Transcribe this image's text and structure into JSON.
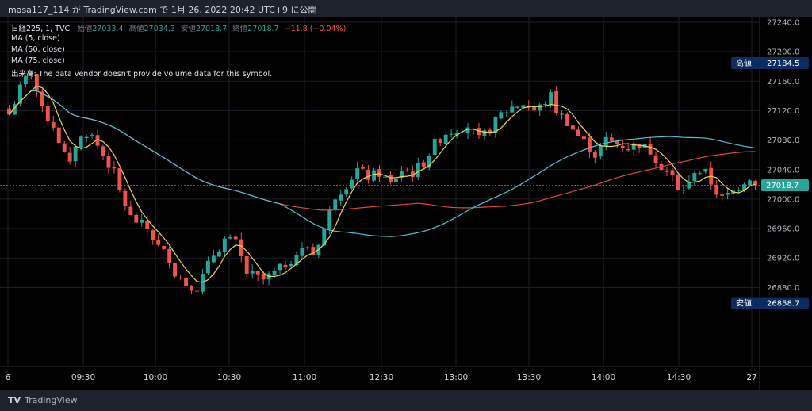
{
  "header": {
    "publisher": "masa117_114 が TradingView.com で 1月 26, 2022 20:42 UTC+9 に公開"
  },
  "legend": {
    "symbol": "日経225, 1, TVC",
    "open_label": "始値",
    "open": "27033.4",
    "high_label": "高値",
    "high": "27034.3",
    "low_label": "安値",
    "low": "27018.7",
    "close_label": "終値",
    "close": "27018.7",
    "change": "−11.8 (−0.04%)",
    "ma5": "MA (5, close)",
    "ma50": "MA (50, close)",
    "ma75": "MA (75, close)",
    "volume_note": "出来高: The data vendor doesn't provide volume data for this symbol."
  },
  "price_markers": {
    "high_label": "高値",
    "high_value": "27184.5",
    "current_value": "27018.7",
    "low_label": "安値",
    "low_value": "26858.7"
  },
  "footer": {
    "brand": "TradingView",
    "logo_text": "TV"
  },
  "colors": {
    "up": "#26a69a",
    "down": "#ef5350",
    "ma5": "#f2d44e",
    "ma50": "#4fc3d9",
    "ma75": "#e0453e",
    "marker_bg": "#0c2c5e",
    "current_bg": "#26a69a",
    "background": "#000000"
  },
  "chart_data": {
    "type": "candlestick",
    "y_ticks": [
      "27240.0",
      "27200.0",
      "27160.0",
      "27120.0",
      "27080.0",
      "27040.0",
      "27000.0",
      "26960.0",
      "26920.0",
      "26880.0"
    ],
    "x_ticks": [
      "6",
      "09:30",
      "10:00",
      "10:30",
      "11:00",
      "12:30",
      "13:00",
      "13:30",
      "14:00",
      "14:30",
      "27"
    ],
    "ylim": [
      26840,
      27250
    ],
    "grid": true,
    "price_path": [
      [
        0,
        27115
      ],
      [
        2,
        27150
      ],
      [
        4,
        27175
      ],
      [
        6,
        27120
      ],
      [
        8,
        27100
      ],
      [
        10,
        27060
      ],
      [
        11,
        27045
      ],
      [
        12,
        27075
      ],
      [
        14,
        27090
      ],
      [
        15,
        27085
      ],
      [
        17,
        27060
      ],
      [
        19,
        27035
      ],
      [
        20,
        27010
      ],
      [
        22,
        26975
      ],
      [
        25,
        26960
      ],
      [
        27,
        26935
      ],
      [
        29,
        26920
      ],
      [
        30,
        26900
      ],
      [
        32,
        26885
      ],
      [
        34,
        26880
      ],
      [
        37,
        26925
      ],
      [
        39,
        26945
      ],
      [
        41,
        26940
      ],
      [
        43,
        26900
      ],
      [
        46,
        26890
      ],
      [
        49,
        26905
      ],
      [
        52,
        26925
      ],
      [
        54,
        26935
      ],
      [
        55,
        26925
      ],
      [
        57,
        26960
      ],
      [
        59,
        27005
      ],
      [
        61,
        27020
      ],
      [
        63,
        27040
      ],
      [
        65,
        27030
      ],
      [
        67,
        27035
      ],
      [
        69,
        27020
      ],
      [
        71,
        27040
      ],
      [
        73,
        27035
      ],
      [
        75,
        27050
      ],
      [
        77,
        27075
      ],
      [
        79,
        27090
      ],
      [
        81,
        27095
      ],
      [
        83,
        27100
      ],
      [
        85,
        27080
      ],
      [
        87,
        27095
      ],
      [
        89,
        27115
      ],
      [
        91,
        27125
      ],
      [
        93,
        27130
      ],
      [
        95,
        27120
      ],
      [
        96,
        27125
      ],
      [
        98,
        27140
      ],
      [
        99,
        27120
      ],
      [
        101,
        27105
      ],
      [
        103,
        27085
      ],
      [
        105,
        27070
      ],
      [
        106,
        27060
      ],
      [
        108,
        27080
      ],
      [
        110,
        27075
      ],
      [
        112,
        27070
      ],
      [
        114,
        27075
      ],
      [
        116,
        27065
      ],
      [
        118,
        27045
      ],
      [
        120,
        27030
      ],
      [
        121,
        27010
      ],
      [
        123,
        27020
      ],
      [
        124,
        27040
      ],
      [
        126,
        27035
      ],
      [
        128,
        27010
      ],
      [
        129,
        27000
      ],
      [
        131,
        27010
      ],
      [
        133,
        27025
      ],
      [
        134,
        27030
      ],
      [
        135,
        27018.7
      ]
    ]
  }
}
